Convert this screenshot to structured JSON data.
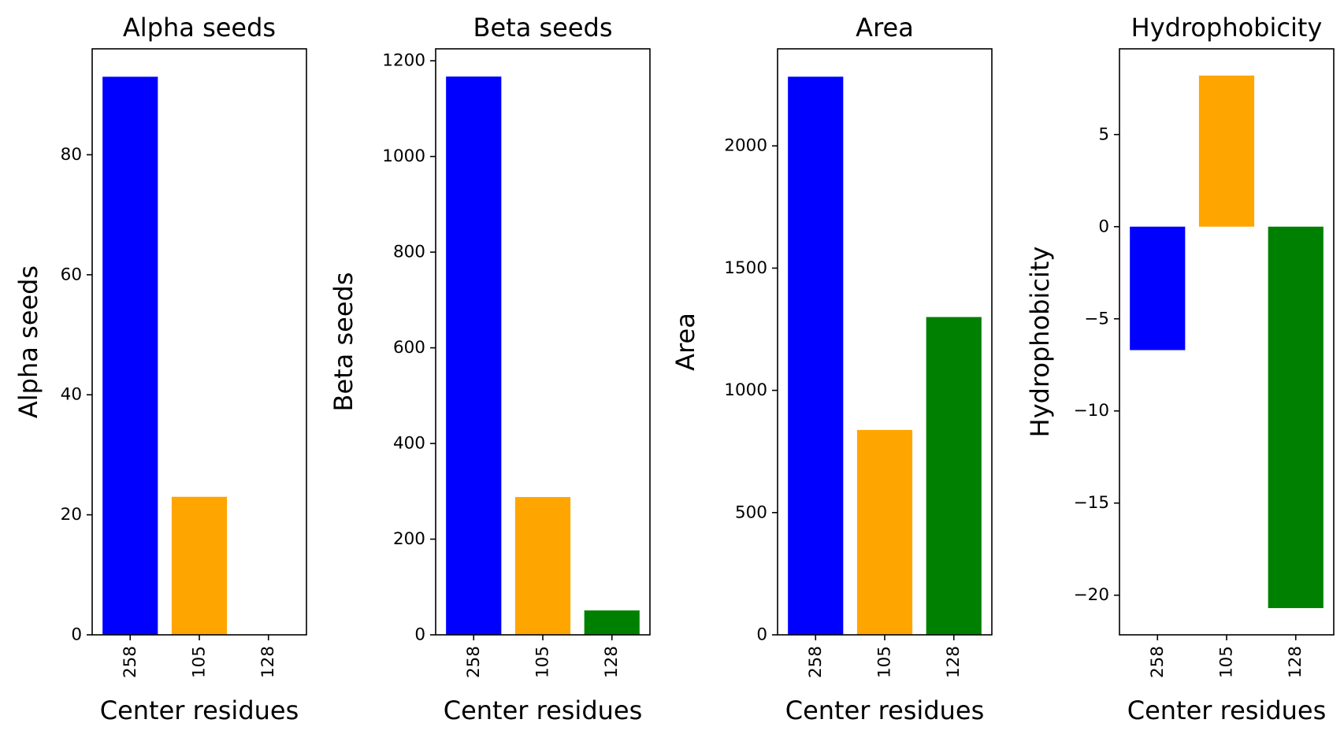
{
  "chart_data": [
    {
      "type": "bar",
      "title": "Alpha seeds",
      "xlabel": "Center residues",
      "ylabel": "Alpha seeds",
      "categories": [
        "258",
        "105",
        "128"
      ],
      "values": [
        93,
        23,
        0
      ],
      "colors": [
        "#0000ff",
        "#ffa500",
        "#008000"
      ],
      "ylim": [
        0,
        97.65
      ],
      "yticks": [
        0,
        20,
        40,
        60,
        80
      ],
      "grid": false
    },
    {
      "type": "bar",
      "title": "Beta seeds",
      "xlabel": "Center residues",
      "ylabel": "Beta seeds",
      "categories": [
        "258",
        "105",
        "128"
      ],
      "values": [
        1167,
        288,
        51
      ],
      "colors": [
        "#0000ff",
        "#ffa500",
        "#008000"
      ],
      "ylim": [
        0,
        1225
      ],
      "yticks": [
        0,
        200,
        400,
        600,
        800,
        1000,
        1200
      ],
      "grid": false
    },
    {
      "type": "bar",
      "title": "Area",
      "xlabel": "Center residues",
      "ylabel": "Area",
      "categories": [
        "258",
        "105",
        "128"
      ],
      "values": [
        2283,
        838,
        1300
      ],
      "colors": [
        "#0000ff",
        "#ffa500",
        "#008000"
      ],
      "ylim": [
        0,
        2397
      ],
      "yticks": [
        0,
        500,
        1000,
        1500,
        2000
      ],
      "grid": false
    },
    {
      "type": "bar",
      "title": "Hydrophobicity",
      "xlabel": "Center residues",
      "ylabel": "Hydrophobicity",
      "categories": [
        "258",
        "105",
        "128"
      ],
      "values": [
        -6.7,
        8.2,
        -20.7
      ],
      "colors": [
        "#0000ff",
        "#ffa500",
        "#008000"
      ],
      "ylim": [
        -22.15,
        9.65
      ],
      "yticks": [
        -20,
        -15,
        -10,
        -5,
        0,
        5
      ],
      "grid": false
    }
  ]
}
